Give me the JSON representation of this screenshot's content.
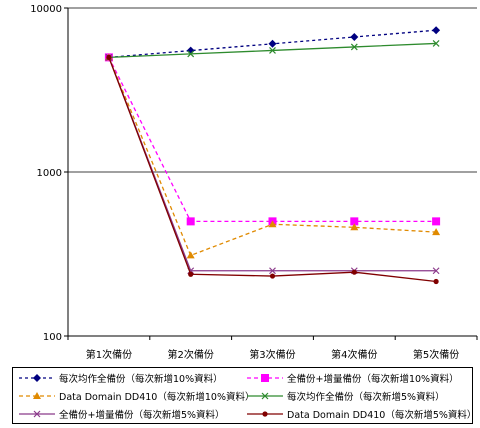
{
  "chart_data": {
    "type": "line",
    "y_scale": "log",
    "ylim": [
      100,
      10000
    ],
    "y_ticks": [
      "10000",
      "1000",
      "100"
    ],
    "grid": "horizontal major gridlines",
    "legend_position": "bottom",
    "categories": [
      "第1次備份",
      "第2次備份",
      "第3次備份",
      "第4次備份",
      "第5次備份"
    ],
    "series": [
      {
        "name": "每次均作全備份（每次新增10%資料）",
        "color": "#000080",
        "marker": "diamond",
        "dash": "3,3",
        "values": [
          5000,
          5500,
          6050,
          6655,
          7320
        ]
      },
      {
        "name": "全備份+增量備份（每次新增10%資料）",
        "color": "#FF00FF",
        "marker": "square",
        "dash": "4,3",
        "values": [
          5000,
          500,
          500,
          500,
          500
        ]
      },
      {
        "name": "Data Domain DD410（每次新增10%資料）",
        "color": "#E08A00",
        "marker": "triangle",
        "dash": "4,3",
        "values": [
          5000,
          310,
          480,
          460,
          430
        ]
      },
      {
        "name": "每次均作全備份（每次新增5%資料）",
        "color": "#2E8B2E",
        "marker": "x",
        "dash": "",
        "values": [
          5000,
          5250,
          5510,
          5790,
          6080
        ]
      },
      {
        "name": "全備份+增量備份（每次新增5%資料）",
        "color": "#8B3A8B",
        "marker": "x",
        "dash": "",
        "values": [
          5000,
          250,
          250,
          250,
          250
        ]
      },
      {
        "name": "Data Domain DD410（每次新增5%資料）",
        "color": "#800000",
        "marker": "dot",
        "dash": "",
        "values": [
          5000,
          238,
          232,
          245,
          215
        ]
      }
    ]
  }
}
